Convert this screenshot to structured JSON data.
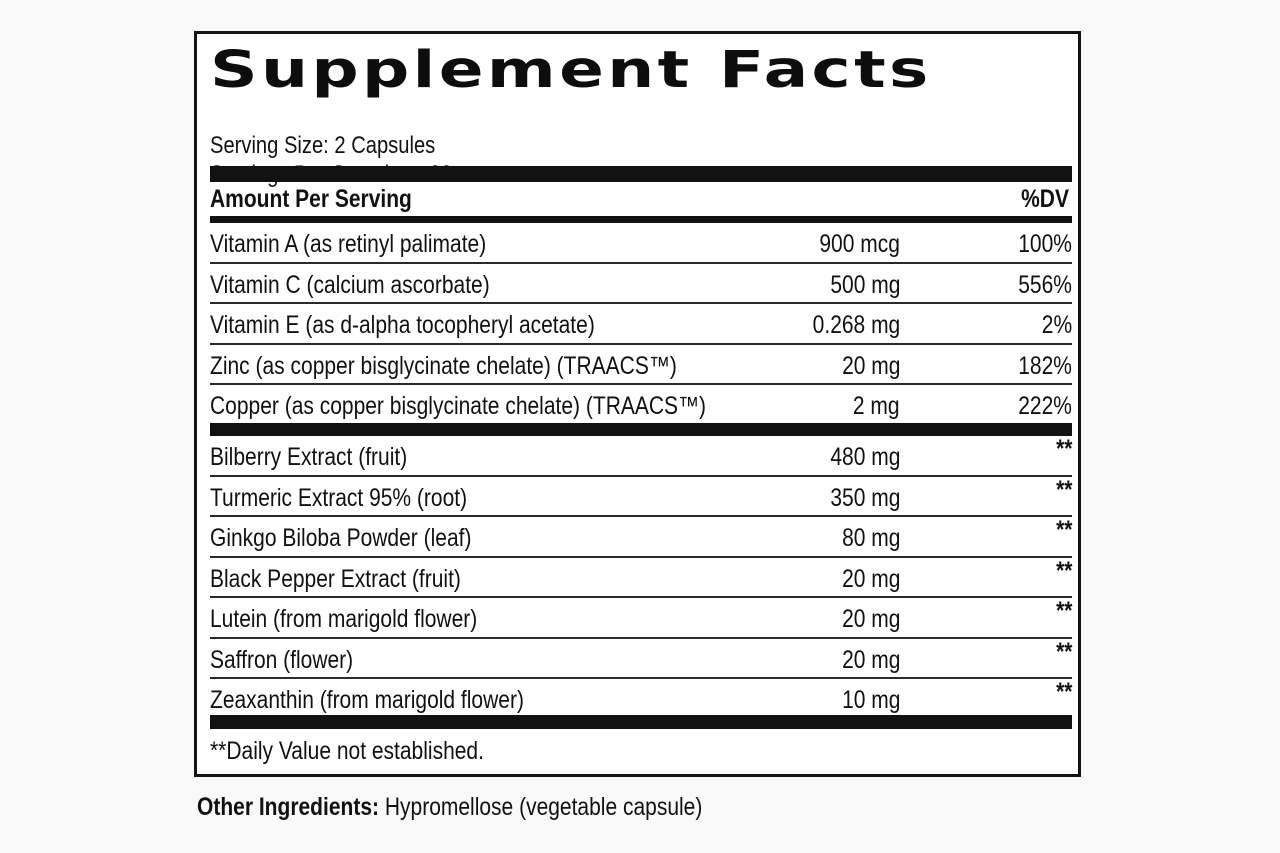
{
  "label": {
    "title": "Supplement Facts",
    "serving_size": "Serving Size: 2 Capsules",
    "servings_per_container": "Servings Per Container: 30",
    "header_amount": "Amount Per Serving",
    "header_dv": "%DV",
    "vitamins": [
      {
        "name": "Vitamin A (as retinyl palimate)",
        "amount": "900 mcg",
        "dv": "100%"
      },
      {
        "name": "Vitamin C (calcium ascorbate)",
        "amount": "500 mg",
        "dv": "556%"
      },
      {
        "name": "Vitamin E (as d-alpha tocopheryl acetate)",
        "amount": "0.268 mg",
        "dv": "2%"
      },
      {
        "name": "Zinc (as copper bisglycinate chelate) (TRAACS™)",
        "amount": "20 mg",
        "dv": "182%"
      },
      {
        "name": "Copper (as copper bisglycinate chelate) (TRAACS™)",
        "amount": "2 mg",
        "dv": "222%"
      }
    ],
    "extracts": [
      {
        "name": "Bilberry Extract (fruit)",
        "amount": "480 mg",
        "dv": "**"
      },
      {
        "name": "Turmeric Extract 95% (root)",
        "amount": "350 mg",
        "dv": "**"
      },
      {
        "name": "Ginkgo Biloba Powder (leaf)",
        "amount": "80 mg",
        "dv": "**"
      },
      {
        "name": "Black Pepper Extract (fruit)",
        "amount": "20 mg",
        "dv": "**"
      },
      {
        "name": "Lutein (from marigold flower)",
        "amount": "20 mg",
        "dv": "**"
      },
      {
        "name": "Saffron (flower)",
        "amount": "20 mg",
        "dv": "**"
      },
      {
        "name": "Zeaxanthin (from marigold flower)",
        "amount": "10 mg",
        "dv": "**"
      }
    ],
    "footnote": "**Daily Value not established."
  },
  "other_ingredients": {
    "label": "Other Ingredients:",
    "value": "Hypromellose (vegetable capsule)"
  }
}
